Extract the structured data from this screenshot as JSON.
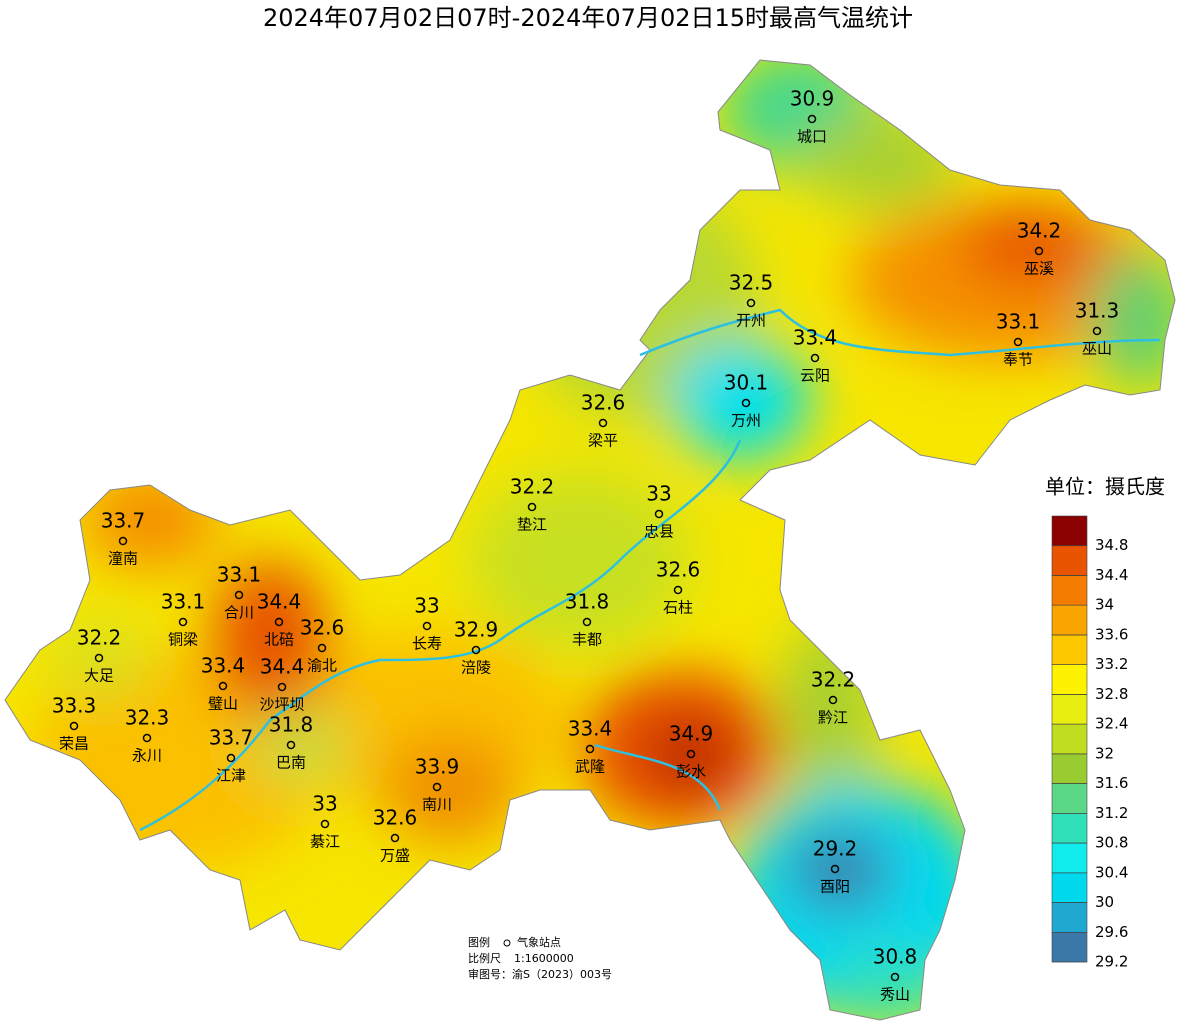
{
  "title": "2024年07月02日07时-2024年07月02日15时最高气温统计",
  "stations": [
    {
      "name": "城口",
      "value": 30.9
    },
    {
      "name": "巫溪",
      "value": 34.2
    },
    {
      "name": "开州",
      "value": 32.5
    },
    {
      "name": "云阳",
      "value": 33.4
    },
    {
      "name": "奉节",
      "value": 33.1
    },
    {
      "name": "巫山",
      "value": 31.3
    },
    {
      "name": "万州",
      "value": 30.1
    },
    {
      "name": "梁平",
      "value": 32.6
    },
    {
      "name": "垫江",
      "value": 32.2
    },
    {
      "name": "忠县",
      "value": 33
    },
    {
      "name": "石柱",
      "value": 32.6
    },
    {
      "name": "丰都",
      "value": 31.8
    },
    {
      "name": "潼南",
      "value": 33.7
    },
    {
      "name": "合川",
      "value": 33.1
    },
    {
      "name": "铜梁",
      "value": 33.1
    },
    {
      "name": "北碚",
      "value": 34.4
    },
    {
      "name": "渝北",
      "value": 32.6
    },
    {
      "name": "长寿",
      "value": 33
    },
    {
      "name": "涪陵",
      "value": 32.9
    },
    {
      "name": "大足",
      "value": 32.2
    },
    {
      "name": "璧山",
      "value": 33.4
    },
    {
      "name": "沙坪坝",
      "value": 34.4
    },
    {
      "name": "荣昌",
      "value": 33.3
    },
    {
      "name": "永川",
      "value": 32.3
    },
    {
      "name": "江津",
      "value": 33.7
    },
    {
      "name": "巴南",
      "value": 31.8
    },
    {
      "name": "武隆",
      "value": 33.4
    },
    {
      "name": "彭水",
      "value": 34.9
    },
    {
      "name": "南川",
      "value": 33.9
    },
    {
      "name": "綦江",
      "value": 33
    },
    {
      "name": "万盛",
      "value": 32.6
    },
    {
      "name": "黔江",
      "value": 32.2
    },
    {
      "name": "酉阳",
      "value": 29.2
    },
    {
      "name": "秀山",
      "value": 30.8
    }
  ],
  "legend": {
    "title": "单位：摄氏度",
    "ticks": [
      29.2,
      29.6,
      30,
      30.4,
      30.8,
      31.2,
      31.6,
      32,
      32.4,
      32.8,
      33.2,
      33.6,
      34,
      34.4,
      34.8
    ],
    "colors": [
      "#3a78a8",
      "#1fa8d0",
      "#00d8ee",
      "#10ecec",
      "#30e0b8",
      "#5ad888",
      "#98cc30",
      "#c2dc20",
      "#e8ee10",
      "#fff200",
      "#fdc800",
      "#faa400",
      "#f47c00",
      "#e85400",
      "#8b0000"
    ]
  },
  "notes": {
    "legend_label": "图例",
    "station_label": "气象站点",
    "scale_label": "比例尺",
    "scale": "1:1600000",
    "approval": "审图号：渝S（2023）003号"
  }
}
